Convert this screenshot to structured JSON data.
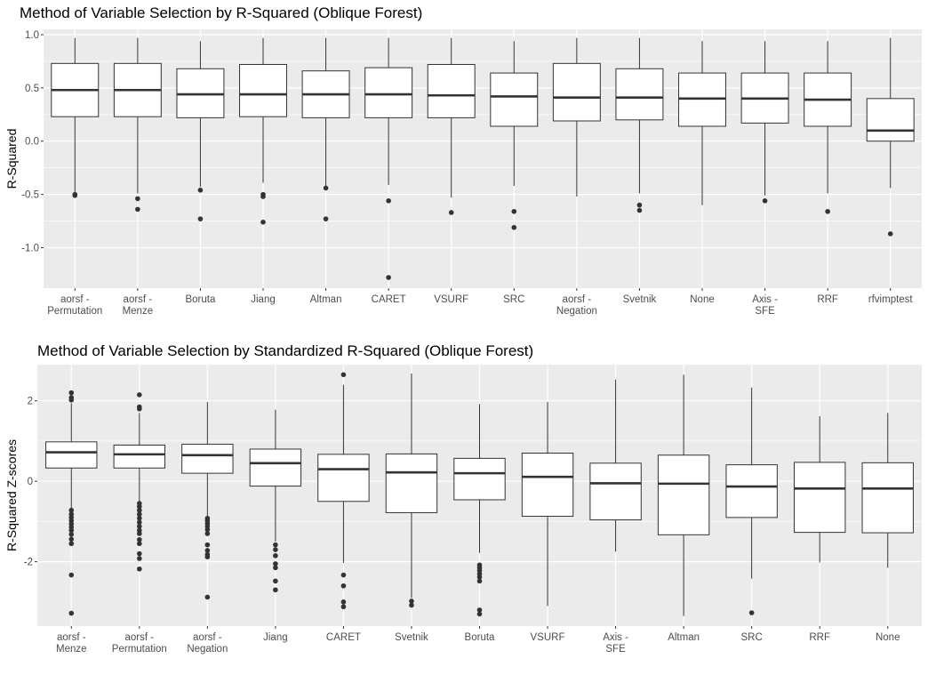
{
  "chart_data": [
    {
      "type": "box",
      "title": "Method of Variable Selection by R-Squared (Oblique Forest)",
      "ylabel": "R-Squared",
      "xlabel": "",
      "ylim": [
        -1.38,
        1.05
      ],
      "yticks": [
        1.0,
        0.5,
        0.0,
        -0.5,
        -1.0
      ],
      "ytick_labels": [
        "1.0",
        "0.5",
        "0.0",
        "-0.5",
        "-1.0"
      ],
      "grid": true,
      "colors": {
        "panel": "#ebebeb",
        "grid": "#ffffff",
        "box_fill": "#ffffff",
        "line": "#333333"
      },
      "categories": [
        {
          "label": [
            "aorsf -",
            "Permutation"
          ],
          "q1": 0.23,
          "median": 0.48,
          "q3": 0.73,
          "whisker_low": -0.49,
          "whisker_high": 0.97,
          "outliers": [
            -0.5,
            -0.51
          ]
        },
        {
          "label": [
            "aorsf -",
            "Menze"
          ],
          "q1": 0.23,
          "median": 0.48,
          "q3": 0.73,
          "whisker_low": -0.49,
          "whisker_high": 0.97,
          "outliers": [
            -0.54,
            -0.64
          ]
        },
        {
          "label": [
            "Boruta"
          ],
          "q1": 0.22,
          "median": 0.44,
          "q3": 0.68,
          "whisker_low": -0.43,
          "whisker_high": 0.94,
          "outliers": [
            -0.46,
            -0.73
          ]
        },
        {
          "label": [
            "Jiang"
          ],
          "q1": 0.23,
          "median": 0.44,
          "q3": 0.72,
          "whisker_low": -0.39,
          "whisker_high": 0.97,
          "outliers": [
            -0.5,
            -0.52,
            -0.76
          ]
        },
        {
          "label": [
            "Altman"
          ],
          "q1": 0.22,
          "median": 0.44,
          "q3": 0.66,
          "whisker_low": -0.42,
          "whisker_high": 0.97,
          "outliers": [
            -0.44,
            -0.73
          ]
        },
        {
          "label": [
            "CARET"
          ],
          "q1": 0.22,
          "median": 0.44,
          "q3": 0.69,
          "whisker_low": -0.41,
          "whisker_high": 0.97,
          "outliers": [
            -0.56,
            -1.28
          ]
        },
        {
          "label": [
            "VSURF"
          ],
          "q1": 0.22,
          "median": 0.43,
          "q3": 0.72,
          "whisker_low": -0.53,
          "whisker_high": 0.97,
          "outliers": [
            -0.67
          ]
        },
        {
          "label": [
            "SRC"
          ],
          "q1": 0.14,
          "median": 0.42,
          "q3": 0.64,
          "whisker_low": -0.42,
          "whisker_high": 0.94,
          "outliers": [
            -0.66,
            -0.81
          ]
        },
        {
          "label": [
            "aorsf -",
            "Negation"
          ],
          "q1": 0.19,
          "median": 0.41,
          "q3": 0.73,
          "whisker_low": -0.52,
          "whisker_high": 0.97,
          "outliers": []
        },
        {
          "label": [
            "Svetnik"
          ],
          "q1": 0.2,
          "median": 0.41,
          "q3": 0.68,
          "whisker_low": -0.49,
          "whisker_high": 0.97,
          "outliers": [
            -0.6,
            -0.65
          ]
        },
        {
          "label": [
            "None"
          ],
          "q1": 0.14,
          "median": 0.4,
          "q3": 0.64,
          "whisker_low": -0.6,
          "whisker_high": 0.94,
          "outliers": []
        },
        {
          "label": [
            "Axis -",
            "SFE"
          ],
          "q1": 0.17,
          "median": 0.4,
          "q3": 0.64,
          "whisker_low": -0.51,
          "whisker_high": 0.94,
          "outliers": [
            -0.56
          ]
        },
        {
          "label": [
            "RRF"
          ],
          "q1": 0.14,
          "median": 0.39,
          "q3": 0.64,
          "whisker_low": -0.49,
          "whisker_high": 0.94,
          "outliers": [
            -0.66
          ]
        },
        {
          "label": [
            "rfvimptest"
          ],
          "q1": 0.0,
          "median": 0.1,
          "q3": 0.4,
          "whisker_low": -0.44,
          "whisker_high": 0.97,
          "outliers": [
            -0.87
          ]
        }
      ]
    },
    {
      "type": "box",
      "title": "Method of Variable Selection by Standardized R-Squared (Oblique Forest)",
      "ylabel": "R-Squared Z-scores",
      "xlabel": "",
      "ylim": [
        -3.6,
        2.9
      ],
      "yticks": [
        2,
        0,
        -2
      ],
      "ytick_labels": [
        "2",
        "0",
        "-2"
      ],
      "grid": true,
      "colors": {
        "panel": "#ebebeb",
        "grid": "#ffffff",
        "box_fill": "#ffffff",
        "line": "#333333"
      },
      "categories": [
        {
          "label": [
            "aorsf -",
            "Menze"
          ],
          "q1": 0.33,
          "median": 0.72,
          "q3": 0.98,
          "whisker_low": -0.66,
          "whisker_high": 1.94,
          "outliers": [
            2.2,
            2.08,
            2.02,
            -0.72,
            -0.82,
            -0.9,
            -0.98,
            -1.06,
            -1.14,
            -1.22,
            -1.32,
            -1.44,
            -1.55,
            -2.33,
            -3.28
          ]
        },
        {
          "label": [
            "aorsf -",
            "Permutation"
          ],
          "q1": 0.33,
          "median": 0.67,
          "q3": 0.9,
          "whisker_low": -0.5,
          "whisker_high": 1.7,
          "outliers": [
            2.15,
            1.85,
            1.8,
            -0.55,
            -0.63,
            -0.72,
            -0.82,
            -0.92,
            -1.02,
            -1.12,
            -1.22,
            -1.3,
            -1.45,
            -1.55,
            -1.8,
            -1.92,
            -2.18
          ]
        },
        {
          "label": [
            "aorsf -",
            "Negation"
          ],
          "q1": 0.2,
          "median": 0.65,
          "q3": 0.92,
          "whisker_low": -0.86,
          "whisker_high": 1.97,
          "outliers": [
            -0.92,
            -0.98,
            -1.05,
            -1.12,
            -1.2,
            -1.3,
            -1.58,
            -1.72,
            -1.82,
            -1.88,
            -2.88
          ]
        },
        {
          "label": [
            "Jiang"
          ],
          "q1": -0.12,
          "median": 0.45,
          "q3": 0.8,
          "whisker_low": -1.5,
          "whisker_high": 1.78,
          "outliers": [
            -1.58,
            -1.7,
            -1.85,
            -2.05,
            -2.15,
            -2.48,
            -2.7
          ]
        },
        {
          "label": [
            "CARET"
          ],
          "q1": -0.5,
          "median": 0.3,
          "q3": 0.67,
          "whisker_low": -2.03,
          "whisker_high": 2.4,
          "outliers": [
            2.65,
            -2.33,
            -2.6,
            -3.0,
            -3.12
          ]
        },
        {
          "label": [
            "Svetnik"
          ],
          "q1": -0.78,
          "median": 0.22,
          "q3": 0.68,
          "whisker_low": -2.9,
          "whisker_high": 2.68,
          "outliers": [
            -2.98,
            -3.08
          ]
        },
        {
          "label": [
            "Boruta"
          ],
          "q1": -0.46,
          "median": 0.2,
          "q3": 0.57,
          "whisker_low": -1.78,
          "whisker_high": 1.92,
          "outliers": [
            -2.08,
            -2.15,
            -2.22,
            -2.3,
            -2.38,
            -2.48,
            -3.2,
            -3.3
          ]
        },
        {
          "label": [
            "VSURF"
          ],
          "q1": -0.87,
          "median": 0.11,
          "q3": 0.7,
          "whisker_low": -3.1,
          "whisker_high": 1.97,
          "outliers": []
        },
        {
          "label": [
            "Axis -",
            "SFE"
          ],
          "q1": -0.96,
          "median": -0.05,
          "q3": 0.45,
          "whisker_low": -1.75,
          "whisker_high": 2.53,
          "outliers": []
        },
        {
          "label": [
            "Altman"
          ],
          "q1": -1.33,
          "median": -0.06,
          "q3": 0.65,
          "whisker_low": -3.35,
          "whisker_high": 2.65,
          "outliers": []
        },
        {
          "label": [
            "SRC"
          ],
          "q1": -0.9,
          "median": -0.13,
          "q3": 0.41,
          "whisker_low": -2.42,
          "whisker_high": 2.33,
          "outliers": [
            -3.27
          ]
        },
        {
          "label": [
            "RRF"
          ],
          "q1": -1.27,
          "median": -0.18,
          "q3": 0.47,
          "whisker_low": -2.02,
          "whisker_high": 1.62,
          "outliers": []
        },
        {
          "label": [
            "None"
          ],
          "q1": -1.28,
          "median": -0.18,
          "q3": 0.46,
          "whisker_low": -2.15,
          "whisker_high": 1.7,
          "outliers": []
        }
      ]
    }
  ]
}
